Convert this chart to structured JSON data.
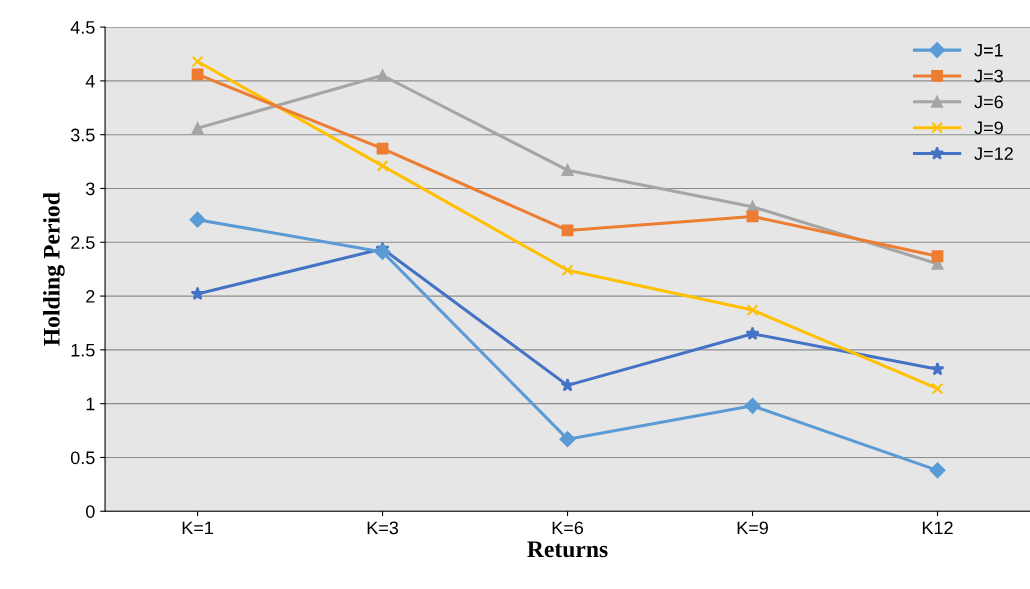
{
  "chart_data": {
    "type": "line",
    "xlabel": "Returns",
    "ylabel": "Holding Period",
    "categories": [
      "K=1",
      "K=3",
      "K=6",
      "K=9",
      "K12"
    ],
    "series": [
      {
        "name": "J=1",
        "color": "#5b9bd5",
        "marker": "diamond",
        "values": [
          2.71,
          2.41,
          0.67,
          0.98,
          0.38
        ]
      },
      {
        "name": "J=3",
        "color": "#ed7d31",
        "marker": "square",
        "values": [
          4.06,
          3.37,
          2.61,
          2.74,
          2.37
        ]
      },
      {
        "name": "J=6",
        "color": "#a5a5a5",
        "marker": "triangle",
        "values": [
          3.56,
          4.05,
          3.17,
          2.83,
          2.3
        ]
      },
      {
        "name": "J=9",
        "color": "#ffc000",
        "marker": "cross",
        "values": [
          4.18,
          3.21,
          2.24,
          1.87,
          1.14
        ]
      },
      {
        "name": "J=12",
        "color": "#4472c4",
        "marker": "star",
        "values": [
          2.02,
          2.44,
          1.17,
          1.65,
          1.32
        ]
      }
    ],
    "ylim": [
      0,
      4.5
    ],
    "yticks": [
      0,
      0.5,
      1,
      1.5,
      2,
      2.5,
      3,
      3.5,
      4,
      4.5
    ],
    "grid": "y",
    "legend": "top right"
  }
}
